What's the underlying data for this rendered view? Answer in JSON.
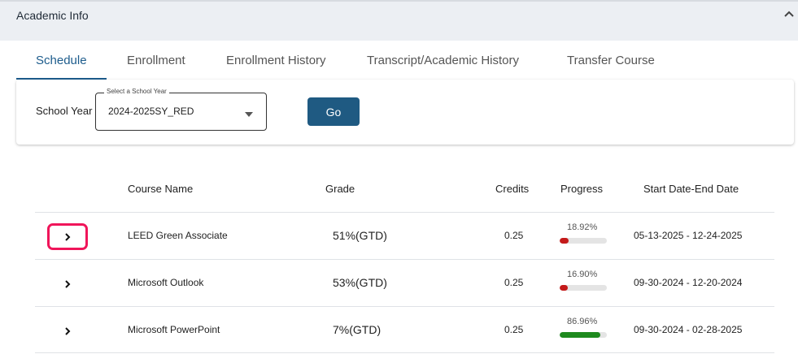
{
  "header": {
    "title": "Academic Info",
    "collapse_icon": "chevron-up-icon"
  },
  "tabs": [
    {
      "label": "Schedule",
      "active": true
    },
    {
      "label": "Enrollment",
      "active": false
    },
    {
      "label": "Enrollment History",
      "active": false
    },
    {
      "label": "Transcript/Academic History",
      "active": false
    },
    {
      "label": "Transfer Course",
      "active": false
    }
  ],
  "filter": {
    "school_year_label": "School Year",
    "select_legend": "Select a School Year",
    "select_value": "2024-2025SY_RED",
    "go_label": "Go"
  },
  "table": {
    "columns": [
      "Course Name",
      "Grade",
      "Credits",
      "Progress",
      "Start Date-End Date"
    ],
    "rows": [
      {
        "course": "LEED Green Associate",
        "grade": "51%(GTD)",
        "credits": "0.25",
        "progress_label": "18.92%",
        "progress": 18.92,
        "progress_color": "#c41a1a",
        "dates": "05-13-2025 - 12-24-2025"
      },
      {
        "course": "Microsoft Outlook",
        "grade": "53%(GTD)",
        "credits": "0.25",
        "progress_label": "16.90%",
        "progress": 16.9,
        "progress_color": "#c41a1a",
        "dates": "09-30-2024 - 12-20-2024"
      },
      {
        "course": "Microsoft PowerPoint",
        "grade": "7%(GTD)",
        "credits": "0.25",
        "progress_label": "86.96%",
        "progress": 86.96,
        "progress_color": "#1e8a1e",
        "dates": "09-30-2024 - 02-28-2025"
      }
    ]
  },
  "colors": {
    "accent": "#1d5c8c",
    "button": "#1f5a82",
    "highlight": "#f0155a"
  }
}
